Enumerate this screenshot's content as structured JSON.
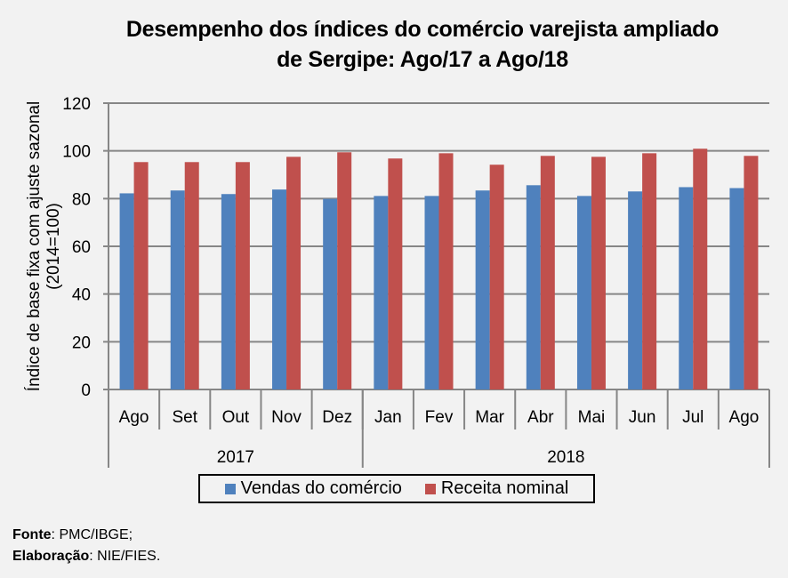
{
  "chart_data": {
    "type": "bar",
    "title": "Desempenho dos índices do comércio varejista ampliado de Sergipe: Ago/17 a Ago/18",
    "title_lines": [
      "Desempenho dos índices do comércio varejista ampliado",
      "de Sergipe: Ago/17 a Ago/18"
    ],
    "xlabel": "",
    "ylabel_lines": [
      "Índice de base fixa com ajuste sazonal",
      "(2014=100)"
    ],
    "ylim": [
      0,
      120
    ],
    "yticks": [
      0,
      20,
      40,
      60,
      80,
      100,
      120
    ],
    "grid": true,
    "categories": [
      "Ago",
      "Set",
      "Out",
      "Nov",
      "Dez",
      "Jan",
      "Fev",
      "Mar",
      "Abr",
      "Mai",
      "Jun",
      "Jul",
      "Ago"
    ],
    "groups": [
      {
        "label": "2017",
        "count": 5
      },
      {
        "label": "2018",
        "count": 8
      }
    ],
    "series": [
      {
        "name": "Vendas do comércio",
        "color": "#4f81bd",
        "values": [
          82.2,
          83.4,
          81.9,
          83.8,
          79.9,
          81.1,
          81.1,
          83.4,
          85.6,
          81.1,
          83.0,
          84.8,
          84.4
        ]
      },
      {
        "name": "Receita nominal",
        "color": "#c0504d",
        "values": [
          95.3,
          95.3,
          95.3,
          97.5,
          99.4,
          96.8,
          99.0,
          94.2,
          97.9,
          97.5,
          99.0,
          100.9,
          97.9
        ]
      }
    ],
    "legend_position": "bottom"
  },
  "footer": {
    "source_label": "Fonte",
    "source_value": ": PMC/IBGE;",
    "prepared_label": "Elaboração",
    "prepared_value": ": NIE/FIES."
  }
}
